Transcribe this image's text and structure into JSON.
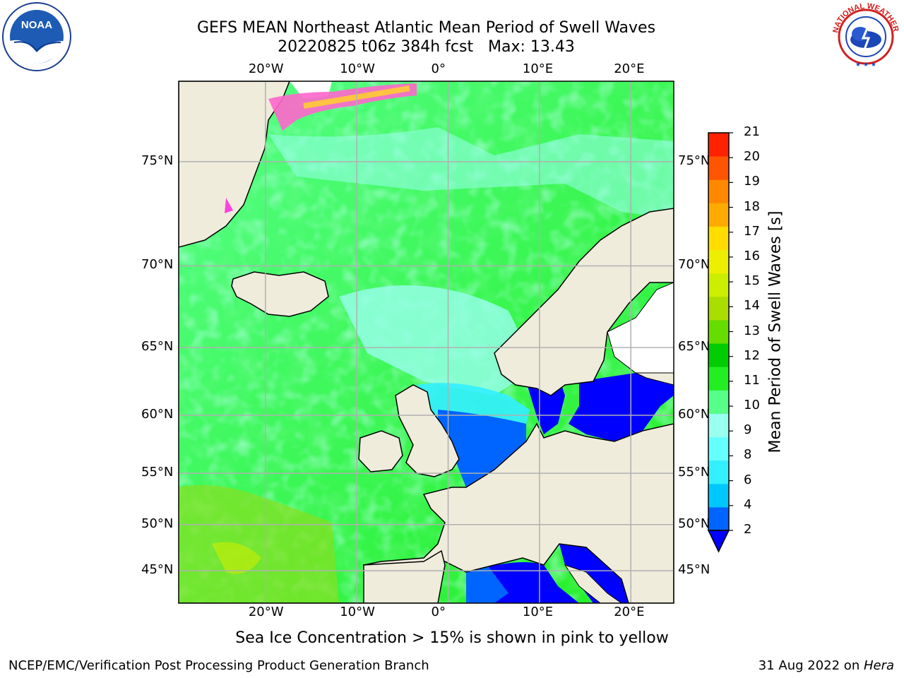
{
  "title": {
    "line1": "GEFS MEAN Northeast Atlantic Mean Period of Swell Waves",
    "line2": "20220825 t06z 384h fcst   Max: 13.43"
  },
  "map": {
    "lon_range": [
      -29.5,
      24.7
    ],
    "lat_range": [
      41.2,
      78.0
    ],
    "lon_ticks": [
      {
        "value": -20,
        "label": "20°W"
      },
      {
        "value": -10,
        "label": "10°W"
      },
      {
        "value": 0,
        "label": "0°"
      },
      {
        "value": 10,
        "label": "10°E"
      },
      {
        "value": 20,
        "label": "20°E"
      }
    ],
    "lat_ticks": [
      {
        "value": 45,
        "label": "45°N"
      },
      {
        "value": 50,
        "label": "50°N"
      },
      {
        "value": 55,
        "label": "55°N"
      },
      {
        "value": 60,
        "label": "60°N"
      },
      {
        "value": 65,
        "label": "65°N"
      },
      {
        "value": 70,
        "label": "70°N"
      },
      {
        "value": 75,
        "label": "75°N"
      }
    ],
    "land_color": "#efecdc",
    "gridline_color": "#b0b0b0"
  },
  "colorbar": {
    "label": "Mean Period of Swell Waves [s]",
    "ticks": [
      "2",
      "4",
      "6",
      "8",
      "9",
      "10",
      "11",
      "12",
      "13",
      "14",
      "15",
      "16",
      "17",
      "18",
      "19",
      "20",
      "21"
    ],
    "colors": [
      "#0064ff",
      "#00c8ff",
      "#33f0ff",
      "#66ffff",
      "#99ffee",
      "#55ff88",
      "#22ee22",
      "#00cc00",
      "#66dd00",
      "#aadd00",
      "#ccee00",
      "#eeee00",
      "#ffdd00",
      "#ffaa00",
      "#ff8800",
      "#ff5500",
      "#ff2200"
    ],
    "underflow_color": "#0000ff"
  },
  "ice_note": "Sea Ice Concentration > 15% is shown in pink to yellow",
  "footer": {
    "left": "NCEP/EMC/Verification Post Processing Product Generation Branch",
    "right_date": "31 Aug 2022 on ",
    "right_machine": "Hera"
  },
  "logos": {
    "noaa_text": "NOAA",
    "nws_text": "NATIONAL WEATHER SERVICE"
  }
}
